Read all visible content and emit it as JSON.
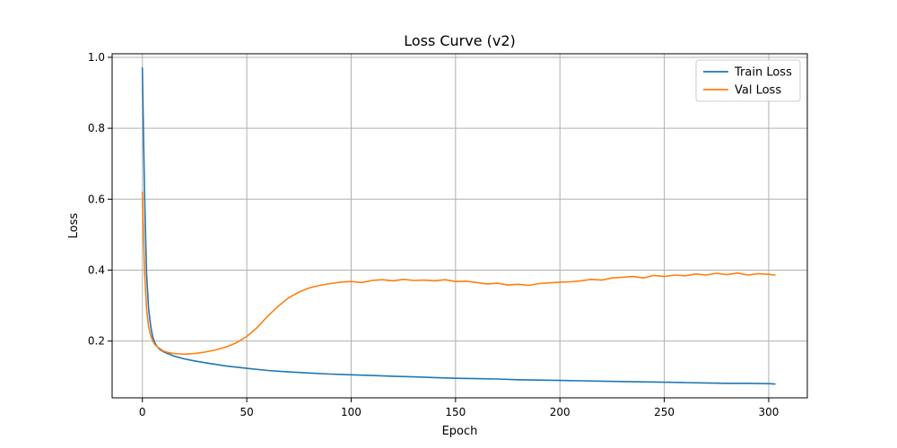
{
  "chart_data": {
    "type": "line",
    "title": "Loss Curve (v2)",
    "xlabel": "Epoch",
    "ylabel": "Loss",
    "xlim": [
      -14.5,
      318.5
    ],
    "ylim": [
      0.04,
      1.01
    ],
    "xticks": [
      0,
      50,
      100,
      150,
      200,
      250,
      300
    ],
    "yticks": [
      0.2,
      0.4,
      0.6,
      0.8,
      1.0
    ],
    "ytick_labels": [
      "0.2",
      "0.4",
      "0.6",
      "0.8",
      "1.0"
    ],
    "grid": true,
    "legend_position": "top-right",
    "series": [
      {
        "name": "Train Loss",
        "color": "#1f77b4",
        "x": [
          0,
          1,
          2,
          3,
          4,
          5,
          6,
          7,
          8,
          10,
          12,
          15,
          20,
          25,
          30,
          40,
          50,
          60,
          70,
          80,
          90,
          100,
          110,
          120,
          130,
          140,
          150,
          160,
          170,
          180,
          190,
          200,
          210,
          220,
          230,
          240,
          250,
          260,
          270,
          280,
          290,
          300,
          303
        ],
        "y": [
          0.97,
          0.62,
          0.39,
          0.29,
          0.24,
          0.21,
          0.195,
          0.185,
          0.178,
          0.17,
          0.165,
          0.158,
          0.15,
          0.144,
          0.139,
          0.13,
          0.123,
          0.117,
          0.113,
          0.11,
          0.107,
          0.105,
          0.103,
          0.101,
          0.099,
          0.097,
          0.095,
          0.094,
          0.093,
          0.091,
          0.09,
          0.089,
          0.088,
          0.087,
          0.086,
          0.085,
          0.084,
          0.083,
          0.082,
          0.081,
          0.081,
          0.08,
          0.079
        ]
      },
      {
        "name": "Val Loss",
        "color": "#ff7f0e",
        "x": [
          0,
          1,
          2,
          3,
          4,
          5,
          6,
          8,
          10,
          12,
          15,
          20,
          25,
          30,
          35,
          40,
          45,
          50,
          55,
          60,
          65,
          70,
          75,
          80,
          85,
          90,
          95,
          100,
          105,
          110,
          115,
          120,
          125,
          130,
          135,
          140,
          145,
          150,
          155,
          160,
          165,
          170,
          175,
          180,
          185,
          190,
          195,
          200,
          205,
          210,
          215,
          220,
          225,
          230,
          235,
          240,
          245,
          250,
          255,
          260,
          265,
          270,
          275,
          280,
          285,
          290,
          295,
          300,
          303
        ],
        "y": [
          0.62,
          0.4,
          0.29,
          0.24,
          0.215,
          0.2,
          0.19,
          0.18,
          0.172,
          0.168,
          0.165,
          0.163,
          0.165,
          0.169,
          0.175,
          0.183,
          0.195,
          0.213,
          0.238,
          0.27,
          0.298,
          0.322,
          0.338,
          0.35,
          0.357,
          0.362,
          0.366,
          0.368,
          0.365,
          0.371,
          0.373,
          0.37,
          0.374,
          0.371,
          0.372,
          0.37,
          0.373,
          0.368,
          0.369,
          0.365,
          0.361,
          0.363,
          0.358,
          0.36,
          0.357,
          0.362,
          0.364,
          0.366,
          0.367,
          0.37,
          0.374,
          0.372,
          0.378,
          0.38,
          0.382,
          0.378,
          0.385,
          0.382,
          0.386,
          0.384,
          0.389,
          0.386,
          0.391,
          0.387,
          0.392,
          0.386,
          0.39,
          0.388,
          0.386
        ]
      }
    ]
  }
}
